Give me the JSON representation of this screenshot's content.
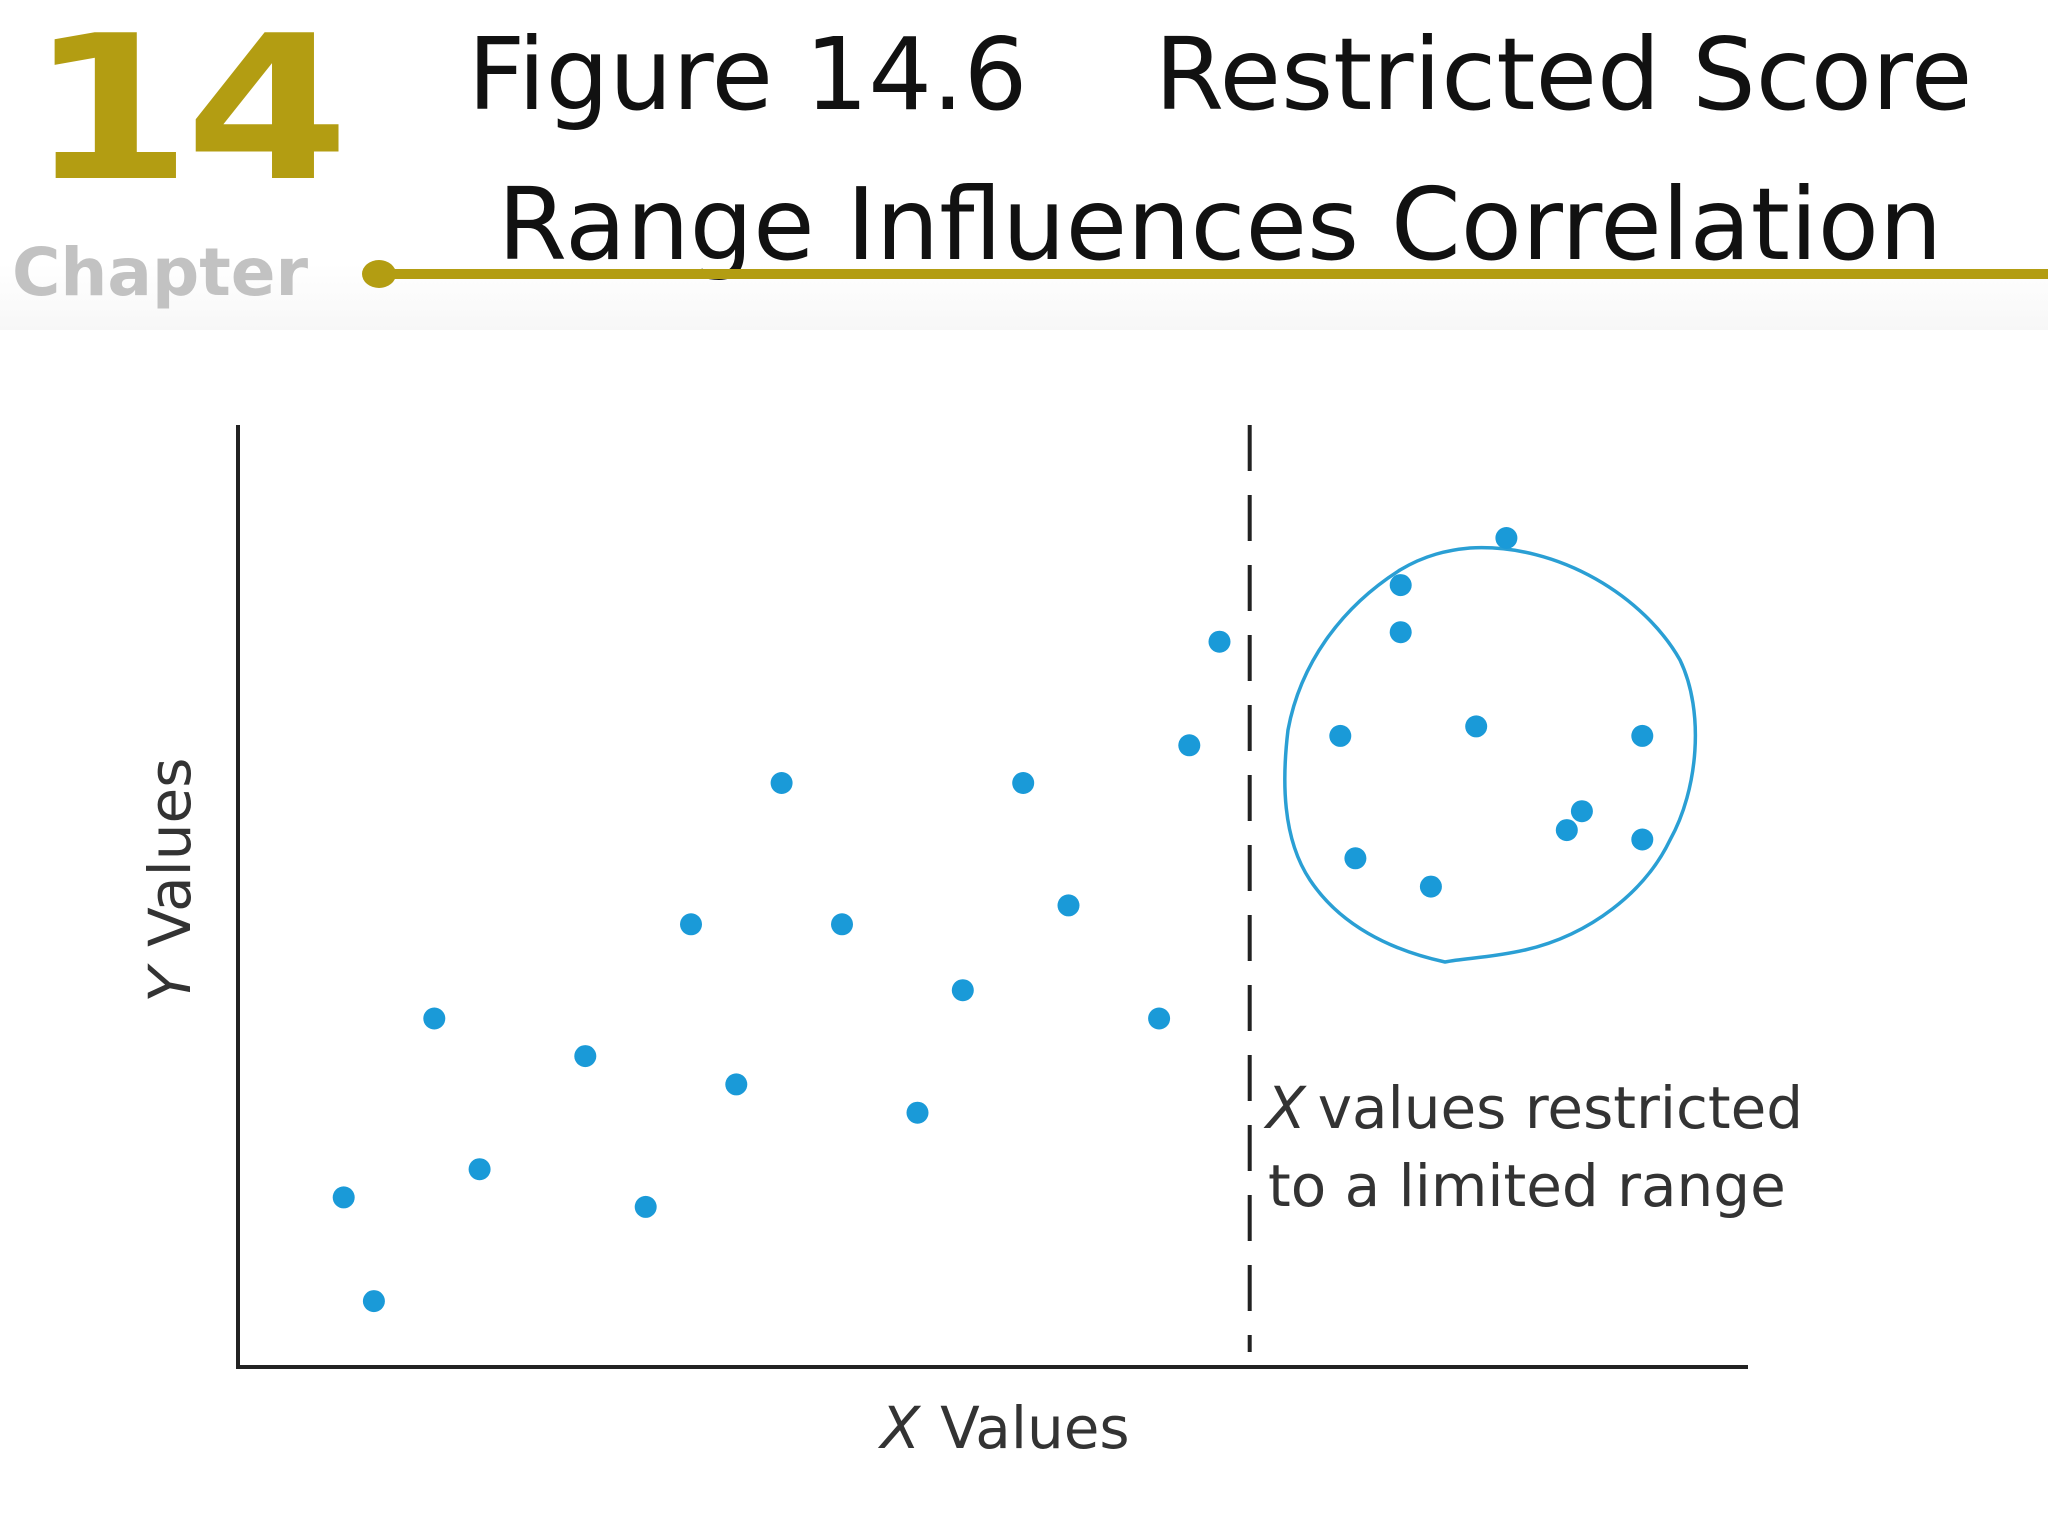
{
  "header": {
    "chapter_number": "14",
    "chapter_label": "Chapter",
    "title_line1": "Figure 14.6    Restricted Score",
    "title_line2": "Range Influences Correlation"
  },
  "colors": {
    "accent": "#b39d12",
    "points": "#1a9ad8",
    "circle": "#2a9fd4",
    "axes": "#222222"
  },
  "chart_data": {
    "type": "scatter",
    "title": "Figure 14.6 Restricted Score Range Influences Correlation",
    "xlabel_italic": "X",
    "xlabel_rest": "Values",
    "ylabel_italic": "Y",
    "ylabel_rest": "Values",
    "xlim": [
      0,
      100
    ],
    "ylim": [
      0,
      100
    ],
    "cutoff_x": 67,
    "annotation_italic": "X",
    "annotation_line1_rest": "values restricted",
    "annotation_line2": "to a limited range",
    "points": [
      {
        "x": 7,
        "y": 18
      },
      {
        "x": 9,
        "y": 7
      },
      {
        "x": 13,
        "y": 37
      },
      {
        "x": 16,
        "y": 21
      },
      {
        "x": 23,
        "y": 33
      },
      {
        "x": 27,
        "y": 17
      },
      {
        "x": 30,
        "y": 47
      },
      {
        "x": 33,
        "y": 30
      },
      {
        "x": 36,
        "y": 62
      },
      {
        "x": 40,
        "y": 47
      },
      {
        "x": 45,
        "y": 27
      },
      {
        "x": 48,
        "y": 40
      },
      {
        "x": 52,
        "y": 62
      },
      {
        "x": 55,
        "y": 49
      },
      {
        "x": 61,
        "y": 37
      },
      {
        "x": 63,
        "y": 66
      },
      {
        "x": 65,
        "y": 77
      },
      {
        "x": 73,
        "y": 67
      },
      {
        "x": 74,
        "y": 54
      },
      {
        "x": 77,
        "y": 78
      },
      {
        "x": 82,
        "y": 68
      },
      {
        "x": 77,
        "y": 83
      },
      {
        "x": 84,
        "y": 88
      },
      {
        "x": 89,
        "y": 59
      },
      {
        "x": 88,
        "y": 57
      },
      {
        "x": 79,
        "y": 51
      },
      {
        "x": 93,
        "y": 67
      },
      {
        "x": 93,
        "y": 56
      }
    ]
  }
}
